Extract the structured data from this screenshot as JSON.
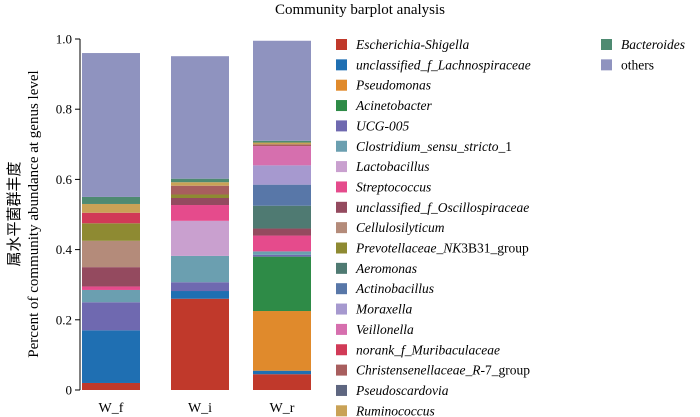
{
  "chart_data": {
    "type": "bar",
    "stacked": true,
    "title": "Community barplot analysis",
    "ylabel_zh": "属水平菌群丰度",
    "ylabel": "Percent of community abundance at genus level",
    "ylim": [
      0,
      1.0
    ],
    "yticks": [
      "0",
      "0.2",
      "0.4",
      "0.6",
      "0.8",
      "1.0"
    ],
    "categories": [
      "W_f",
      "W_i",
      "W_r"
    ],
    "series": [
      {
        "name": "Escherichia-Shigella",
        "label": [
          {
            "t": "Escherichia-Shigella",
            "i": true
          }
        ],
        "color": "#c0392b",
        "values": [
          0.02,
          0.26,
          0.045
        ]
      },
      {
        "name": "unclassified_f_Lachnospiraceae",
        "label": [
          {
            "t": "unclassified_f_Lachnospiraceae",
            "i": true
          }
        ],
        "color": "#1f6fb2",
        "values": [
          0.15,
          0.022,
          0.01
        ]
      },
      {
        "name": "Pseudomonas",
        "label": [
          {
            "t": "Pseudomonas",
            "i": true
          }
        ],
        "color": "#e08a2c",
        "values": [
          0.0,
          0.0,
          0.17
        ]
      },
      {
        "name": "Acinetobacter",
        "label": [
          {
            "t": "Acinetobacter",
            "i": true
          }
        ],
        "color": "#2e8b47",
        "values": [
          0.0,
          0.0,
          0.155
        ]
      },
      {
        "name": "UCG-005",
        "label": [
          {
            "t": "UCG-005",
            "i": true
          }
        ],
        "color": "#6f69b0",
        "values": [
          0.08,
          0.025,
          0.005
        ]
      },
      {
        "name": "Clostridium_sensu_stricto_1",
        "label": [
          {
            "t": "Clostridium_sensu_stricto",
            "i": true
          },
          {
            "t": "_1",
            "i": false
          }
        ],
        "color": "#6b9fb0",
        "values": [
          0.035,
          0.075,
          0.01
        ]
      },
      {
        "name": "Lactobacillus",
        "label": [
          {
            "t": "Lactobacillus",
            "i": true
          }
        ],
        "color": "#c9a0cf",
        "values": [
          0.0,
          0.1,
          0.0
        ]
      },
      {
        "name": "Streptococcus",
        "label": [
          {
            "t": "Streptococcus",
            "i": true
          }
        ],
        "color": "#e54b8c",
        "values": [
          0.01,
          0.045,
          0.045
        ]
      },
      {
        "name": "unclassified_f_Oscillospiraceae",
        "label": [
          {
            "t": "unclassified_f_Oscillospiraceae",
            "i": true
          }
        ],
        "color": "#944a5f",
        "values": [
          0.055,
          0.02,
          0.02
        ]
      },
      {
        "name": "Cellulosilyticum",
        "label": [
          {
            "t": "Cellulosilyticum",
            "i": true
          }
        ],
        "color": "#b48b7a",
        "values": [
          0.075,
          0.0,
          0.0
        ]
      },
      {
        "name": "Prevotellaceae_NK3B31_group",
        "label": [
          {
            "t": "Prevotellaceae_NK",
            "i": true
          },
          {
            "t": "3B31_group",
            "i": false
          }
        ],
        "color": "#8e8a32",
        "values": [
          0.05,
          0.01,
          0.0
        ]
      },
      {
        "name": "Aeromonas",
        "label": [
          {
            "t": "Aeromonas",
            "i": true
          }
        ],
        "color": "#4f7a72",
        "values": [
          0.0,
          0.0,
          0.065
        ]
      },
      {
        "name": "Actinobacillus",
        "label": [
          {
            "t": "Actinobacillus",
            "i": true
          }
        ],
        "color": "#5877a8",
        "values": [
          0.0,
          0.0,
          0.06
        ]
      },
      {
        "name": "Moraxella",
        "label": [
          {
            "t": "Moraxella",
            "i": true
          }
        ],
        "color": "#a699cf",
        "values": [
          0.0,
          0.0,
          0.055
        ]
      },
      {
        "name": "Veillonella",
        "label": [
          {
            "t": "Veillonella",
            "i": true
          }
        ],
        "color": "#d66fae",
        "values": [
          0.0,
          0.0,
          0.055
        ]
      },
      {
        "name": "norank_f_Muribaculaceae",
        "label": [
          {
            "t": "norank_f_Muribaculaceae",
            "i": true
          }
        ],
        "color": "#d13a57",
        "values": [
          0.03,
          0.0,
          0.0
        ]
      },
      {
        "name": "Christensenellaceae_R-7_group",
        "label": [
          {
            "t": "Christensenellaceae_R",
            "i": true
          },
          {
            "t": "-7_group",
            "i": false
          }
        ],
        "color": "#a85e5e",
        "values": [
          0.0,
          0.025,
          0.005
        ]
      },
      {
        "name": "Pseudoscardovia",
        "label": [
          {
            "t": "Pseudoscardovia",
            "i": true
          }
        ],
        "color": "#5e6680",
        "values": [
          0.0,
          0.0,
          0.0
        ]
      },
      {
        "name": "Ruminococcus",
        "label": [
          {
            "t": "Ruminococcus",
            "i": true
          }
        ],
        "color": "#c9a256",
        "values": [
          0.025,
          0.01,
          0.005
        ]
      },
      {
        "name": "Bacteroides",
        "label": [
          {
            "t": "Bacteroides",
            "i": true
          }
        ],
        "color": "#4e8a71",
        "values": [
          0.02,
          0.01,
          0.005
        ]
      },
      {
        "name": "others",
        "label": [
          {
            "t": "others",
            "i": false
          }
        ],
        "color": "#8f93bf",
        "values": [
          0.41,
          0.349,
          0.285
        ]
      }
    ]
  }
}
